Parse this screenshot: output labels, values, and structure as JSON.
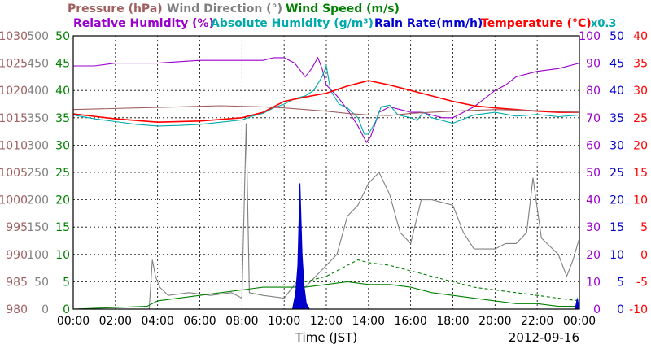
{
  "chart_data": {
    "type": "line",
    "title_rows": [
      [
        {
          "text": "Pressure (hPa)",
          "color": "#a06060"
        },
        {
          "text": "Wind Direction (°)",
          "color": "#808080"
        },
        {
          "text": "Wind Speed (m/s)",
          "color": "#008000"
        }
      ],
      [
        {
          "text": "Relative Humidity (%)",
          "color": "#9900cc"
        },
        {
          "text": "Absolute Humidity (g/m³)",
          "color": "#00aaaa"
        },
        {
          "text": "Rain Rate(mm/h)",
          "color": "#0000cc"
        },
        {
          "text": "Temperature (°C)",
          "color": "#ff0000"
        }
      ]
    ],
    "rain_scale_note": "x0.3",
    "xlabel": "Time (JST)",
    "date": "2012-09-16",
    "x_range": [
      0,
      24
    ],
    "x_ticks": [
      "00:00",
      "02:00",
      "04:00",
      "06:00",
      "08:00",
      "10:00",
      "12:00",
      "14:00",
      "16:00",
      "18:00",
      "20:00",
      "22:00",
      "00:00"
    ],
    "left_axes": [
      {
        "name": "pressure",
        "color": "#a06060",
        "ticks": [
          "980",
          "985",
          "990",
          "995",
          "1000",
          "1005",
          "1010",
          "1015",
          "1020",
          "1025",
          "1030"
        ],
        "range": [
          980,
          1030
        ]
      },
      {
        "name": "wind_direction",
        "color": "#808080",
        "ticks": [
          "0",
          "50",
          "100",
          "150",
          "200",
          "250",
          "300",
          "350",
          "400",
          "450",
          "500"
        ],
        "range": [
          0,
          500
        ]
      },
      {
        "name": "wind_speed",
        "color": "#008000",
        "ticks": [
          "0",
          "5",
          "10",
          "15",
          "20",
          "25",
          "30",
          "35",
          "40",
          "45",
          "50"
        ],
        "range": [
          0,
          50
        ]
      }
    ],
    "right_axes": [
      {
        "name": "humidity",
        "color": "#9900cc",
        "ticks": [
          "0",
          "10",
          "20",
          "30",
          "40",
          "50",
          "60",
          "70",
          "80",
          "90",
          "100"
        ],
        "range": [
          0,
          100
        ]
      },
      {
        "name": "rain_rate",
        "color": "#0000cc",
        "ticks": [
          "0",
          "5",
          "10",
          "15",
          "20",
          "25",
          "30",
          "35",
          "40",
          "45",
          "50"
        ],
        "range": [
          0,
          50
        ]
      },
      {
        "name": "temperature",
        "color": "#ff0000",
        "ticks": [
          "-10",
          "-5",
          "0",
          "5",
          "10",
          "15",
          "20",
          "25",
          "30",
          "35",
          "40"
        ],
        "range": [
          -10,
          40
        ]
      }
    ],
    "grid": true,
    "series": [
      {
        "name": "Relative Humidity (%)",
        "axis": "humidity",
        "color": "#9900cc",
        "points": [
          [
            0,
            89
          ],
          [
            1,
            89
          ],
          [
            2,
            90
          ],
          [
            4,
            90
          ],
          [
            6,
            91
          ],
          [
            8,
            91
          ],
          [
            9,
            91
          ],
          [
            9.5,
            92
          ],
          [
            10,
            92
          ],
          [
            10.5,
            90
          ],
          [
            11,
            85
          ],
          [
            11.3,
            88
          ],
          [
            11.6,
            92
          ],
          [
            11.8,
            88
          ],
          [
            12,
            82
          ],
          [
            12.5,
            78
          ],
          [
            13,
            73
          ],
          [
            13.5,
            67
          ],
          [
            13.9,
            61
          ],
          [
            14.1,
            63
          ],
          [
            14.5,
            72
          ],
          [
            15,
            74
          ],
          [
            15.5,
            73
          ],
          [
            16,
            72
          ],
          [
            16.5,
            72
          ],
          [
            17,
            71
          ],
          [
            17.5,
            70
          ],
          [
            18,
            70
          ],
          [
            18.5,
            72
          ],
          [
            19,
            74
          ],
          [
            19.5,
            77
          ],
          [
            20,
            80
          ],
          [
            20.5,
            82
          ],
          [
            21,
            85
          ],
          [
            22,
            87
          ],
          [
            23,
            88
          ],
          [
            24,
            90
          ]
        ]
      },
      {
        "name": "Absolute Humidity (g/m³)",
        "axis": "wind_speed",
        "color": "#00aaaa",
        "points": [
          [
            0,
            35.5
          ],
          [
            1,
            34.8
          ],
          [
            2,
            34.3
          ],
          [
            3,
            33.8
          ],
          [
            4,
            33.5
          ],
          [
            5,
            33.6
          ],
          [
            6,
            33.8
          ],
          [
            7,
            34.2
          ],
          [
            8,
            34.6
          ],
          [
            8.5,
            35.3
          ],
          [
            9,
            35.8
          ],
          [
            9.5,
            36.8
          ],
          [
            10,
            37.5
          ],
          [
            10.5,
            38.5
          ],
          [
            11,
            39
          ],
          [
            11.4,
            40
          ],
          [
            11.8,
            42.5
          ],
          [
            12,
            44.5
          ],
          [
            12.2,
            40
          ],
          [
            12.6,
            37.5
          ],
          [
            13,
            36.8
          ],
          [
            13.5,
            35
          ],
          [
            13.8,
            32
          ],
          [
            14,
            32
          ],
          [
            14.3,
            34
          ],
          [
            14.6,
            37
          ],
          [
            15,
            37.3
          ],
          [
            15.4,
            35.5
          ],
          [
            16,
            35
          ],
          [
            16.3,
            34.5
          ],
          [
            16.6,
            36
          ],
          [
            17,
            35
          ],
          [
            18,
            34
          ],
          [
            19,
            35.5
          ],
          [
            20,
            36
          ],
          [
            21,
            35.3
          ],
          [
            22,
            35.6
          ],
          [
            23,
            35.2
          ],
          [
            24,
            35.5
          ]
        ]
      },
      {
        "name": "Temperature (°C)",
        "axis": "temperature",
        "color": "#ff0000",
        "points": [
          [
            0,
            25.7
          ],
          [
            2,
            24.8
          ],
          [
            4,
            24.2
          ],
          [
            6,
            24.4
          ],
          [
            8,
            25
          ],
          [
            9,
            26
          ],
          [
            10,
            28
          ],
          [
            11,
            28.8
          ],
          [
            12,
            29.5
          ],
          [
            13,
            30.8
          ],
          [
            14,
            31.8
          ],
          [
            15,
            31
          ],
          [
            16,
            30
          ],
          [
            17,
            29
          ],
          [
            18,
            28
          ],
          [
            19,
            27.2
          ],
          [
            20,
            26.8
          ],
          [
            21,
            26.5
          ],
          [
            22,
            26.2
          ],
          [
            23,
            26
          ],
          [
            24,
            26
          ]
        ]
      },
      {
        "name": "Pressure (hPa)",
        "axis": "pressure",
        "color": "#a06060",
        "points": [
          [
            0,
            1016.5
          ],
          [
            3,
            1016.8
          ],
          [
            5,
            1017
          ],
          [
            7,
            1017.2
          ],
          [
            9,
            1017
          ],
          [
            10,
            1016.8
          ],
          [
            11,
            1016.5
          ],
          [
            12,
            1016.2
          ],
          [
            13,
            1015.8
          ],
          [
            14,
            1015.5
          ],
          [
            15,
            1015.4
          ],
          [
            16,
            1015.8
          ],
          [
            18,
            1016.2
          ],
          [
            20,
            1016.5
          ],
          [
            22,
            1016.3
          ],
          [
            24,
            1016
          ]
        ]
      },
      {
        "name": "Wind Direction (°)",
        "axis": "wind_direction",
        "color": "#808080",
        "points": [
          [
            0,
            0
          ],
          [
            3.6,
            0
          ],
          [
            3.75,
            90
          ],
          [
            3.9,
            60
          ],
          [
            4.1,
            40
          ],
          [
            4.5,
            25
          ],
          [
            5.5,
            30
          ],
          [
            6.5,
            25
          ],
          [
            7.5,
            30
          ],
          [
            8,
            20
          ],
          [
            8.2,
            340
          ],
          [
            8.35,
            30
          ],
          [
            9,
            25
          ],
          [
            10,
            20
          ],
          [
            10.6,
            50
          ],
          [
            11,
            40
          ],
          [
            11.5,
            60
          ],
          [
            12,
            80
          ],
          [
            12.5,
            100
          ],
          [
            13,
            170
          ],
          [
            13.5,
            190
          ],
          [
            14,
            230
          ],
          [
            14.5,
            250
          ],
          [
            15,
            210
          ],
          [
            15.5,
            140
          ],
          [
            16,
            120
          ],
          [
            16.5,
            200
          ],
          [
            17,
            200
          ],
          [
            18,
            190
          ],
          [
            18.5,
            140
          ],
          [
            19,
            110
          ],
          [
            20,
            110
          ],
          [
            20.5,
            120
          ],
          [
            21,
            120
          ],
          [
            21.5,
            140
          ],
          [
            21.8,
            240
          ],
          [
            22.2,
            130
          ],
          [
            23,
            100
          ],
          [
            23.4,
            60
          ],
          [
            23.7,
            90
          ],
          [
            24,
            130
          ]
        ]
      },
      {
        "name": "Wind Speed (m/s)",
        "axis": "wind_speed",
        "color": "#008000",
        "points": [
          [
            0,
            0
          ],
          [
            3.5,
            0.5
          ],
          [
            4,
            1.5
          ],
          [
            5,
            2
          ],
          [
            6,
            2.5
          ],
          [
            7,
            3
          ],
          [
            8,
            3.5
          ],
          [
            9,
            4
          ],
          [
            10,
            4
          ],
          [
            11,
            4
          ],
          [
            12,
            4.5
          ],
          [
            13,
            5
          ],
          [
            14,
            4.5
          ],
          [
            15,
            4.5
          ],
          [
            16,
            4
          ],
          [
            17,
            3
          ],
          [
            18,
            2.5
          ],
          [
            19,
            2
          ],
          [
            20,
            1.5
          ],
          [
            21,
            1
          ],
          [
            22,
            1
          ],
          [
            23,
            0.5
          ],
          [
            24,
            0.5
          ]
        ]
      },
      {
        "name": "Wind Speed gust",
        "axis": "wind_speed",
        "color": "#008000",
        "dashed": true,
        "points": [
          [
            10.5,
            4
          ],
          [
            11,
            5
          ],
          [
            12,
            6
          ],
          [
            12.5,
            7
          ],
          [
            13,
            8
          ],
          [
            13.5,
            9
          ],
          [
            14,
            8.5
          ],
          [
            15,
            8
          ],
          [
            16,
            7
          ],
          [
            17,
            6
          ],
          [
            18,
            5
          ],
          [
            19,
            4
          ],
          [
            20,
            3.5
          ],
          [
            21,
            3
          ],
          [
            22,
            2.5
          ],
          [
            23,
            2
          ],
          [
            24,
            1.5
          ]
        ]
      },
      {
        "name": "Rain Rate(mm/h)",
        "axis": "rain_rate",
        "color": "#0000cc",
        "fill": true,
        "points": [
          [
            10.4,
            0
          ],
          [
            10.55,
            3
          ],
          [
            10.65,
            8
          ],
          [
            10.75,
            23
          ],
          [
            10.85,
            10
          ],
          [
            10.95,
            4
          ],
          [
            11.05,
            1
          ],
          [
            11.2,
            0
          ],
          [
            23.8,
            0
          ],
          [
            23.9,
            2
          ],
          [
            24,
            0
          ]
        ]
      }
    ]
  }
}
